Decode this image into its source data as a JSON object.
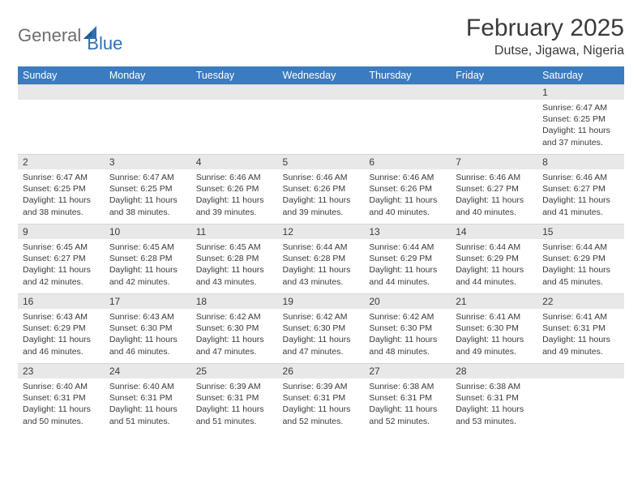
{
  "brand": {
    "name_main": "General",
    "name_sub": "Blue"
  },
  "title": {
    "month": "February 2025",
    "location": "Dutse, Jigawa, Nigeria"
  },
  "colors": {
    "header_bg": "#3b7bbf",
    "header_text": "#ffffff",
    "daynum_bg": "#e8e8e8",
    "text": "#3a3a3a",
    "logo_gray": "#6e6e6e",
    "logo_blue": "#2f6fb3"
  },
  "weekdays": [
    "Sunday",
    "Monday",
    "Tuesday",
    "Wednesday",
    "Thursday",
    "Friday",
    "Saturday"
  ],
  "weeks": [
    [
      {
        "n": "",
        "sr": "",
        "ss": "",
        "dl": ""
      },
      {
        "n": "",
        "sr": "",
        "ss": "",
        "dl": ""
      },
      {
        "n": "",
        "sr": "",
        "ss": "",
        "dl": ""
      },
      {
        "n": "",
        "sr": "",
        "ss": "",
        "dl": ""
      },
      {
        "n": "",
        "sr": "",
        "ss": "",
        "dl": ""
      },
      {
        "n": "",
        "sr": "",
        "ss": "",
        "dl": ""
      },
      {
        "n": "1",
        "sr": "Sunrise: 6:47 AM",
        "ss": "Sunset: 6:25 PM",
        "dl": "Daylight: 11 hours and 37 minutes."
      }
    ],
    [
      {
        "n": "2",
        "sr": "Sunrise: 6:47 AM",
        "ss": "Sunset: 6:25 PM",
        "dl": "Daylight: 11 hours and 38 minutes."
      },
      {
        "n": "3",
        "sr": "Sunrise: 6:47 AM",
        "ss": "Sunset: 6:25 PM",
        "dl": "Daylight: 11 hours and 38 minutes."
      },
      {
        "n": "4",
        "sr": "Sunrise: 6:46 AM",
        "ss": "Sunset: 6:26 PM",
        "dl": "Daylight: 11 hours and 39 minutes."
      },
      {
        "n": "5",
        "sr": "Sunrise: 6:46 AM",
        "ss": "Sunset: 6:26 PM",
        "dl": "Daylight: 11 hours and 39 minutes."
      },
      {
        "n": "6",
        "sr": "Sunrise: 6:46 AM",
        "ss": "Sunset: 6:26 PM",
        "dl": "Daylight: 11 hours and 40 minutes."
      },
      {
        "n": "7",
        "sr": "Sunrise: 6:46 AM",
        "ss": "Sunset: 6:27 PM",
        "dl": "Daylight: 11 hours and 40 minutes."
      },
      {
        "n": "8",
        "sr": "Sunrise: 6:46 AM",
        "ss": "Sunset: 6:27 PM",
        "dl": "Daylight: 11 hours and 41 minutes."
      }
    ],
    [
      {
        "n": "9",
        "sr": "Sunrise: 6:45 AM",
        "ss": "Sunset: 6:27 PM",
        "dl": "Daylight: 11 hours and 42 minutes."
      },
      {
        "n": "10",
        "sr": "Sunrise: 6:45 AM",
        "ss": "Sunset: 6:28 PM",
        "dl": "Daylight: 11 hours and 42 minutes."
      },
      {
        "n": "11",
        "sr": "Sunrise: 6:45 AM",
        "ss": "Sunset: 6:28 PM",
        "dl": "Daylight: 11 hours and 43 minutes."
      },
      {
        "n": "12",
        "sr": "Sunrise: 6:44 AM",
        "ss": "Sunset: 6:28 PM",
        "dl": "Daylight: 11 hours and 43 minutes."
      },
      {
        "n": "13",
        "sr": "Sunrise: 6:44 AM",
        "ss": "Sunset: 6:29 PM",
        "dl": "Daylight: 11 hours and 44 minutes."
      },
      {
        "n": "14",
        "sr": "Sunrise: 6:44 AM",
        "ss": "Sunset: 6:29 PM",
        "dl": "Daylight: 11 hours and 44 minutes."
      },
      {
        "n": "15",
        "sr": "Sunrise: 6:44 AM",
        "ss": "Sunset: 6:29 PM",
        "dl": "Daylight: 11 hours and 45 minutes."
      }
    ],
    [
      {
        "n": "16",
        "sr": "Sunrise: 6:43 AM",
        "ss": "Sunset: 6:29 PM",
        "dl": "Daylight: 11 hours and 46 minutes."
      },
      {
        "n": "17",
        "sr": "Sunrise: 6:43 AM",
        "ss": "Sunset: 6:30 PM",
        "dl": "Daylight: 11 hours and 46 minutes."
      },
      {
        "n": "18",
        "sr": "Sunrise: 6:42 AM",
        "ss": "Sunset: 6:30 PM",
        "dl": "Daylight: 11 hours and 47 minutes."
      },
      {
        "n": "19",
        "sr": "Sunrise: 6:42 AM",
        "ss": "Sunset: 6:30 PM",
        "dl": "Daylight: 11 hours and 47 minutes."
      },
      {
        "n": "20",
        "sr": "Sunrise: 6:42 AM",
        "ss": "Sunset: 6:30 PM",
        "dl": "Daylight: 11 hours and 48 minutes."
      },
      {
        "n": "21",
        "sr": "Sunrise: 6:41 AM",
        "ss": "Sunset: 6:30 PM",
        "dl": "Daylight: 11 hours and 49 minutes."
      },
      {
        "n": "22",
        "sr": "Sunrise: 6:41 AM",
        "ss": "Sunset: 6:31 PM",
        "dl": "Daylight: 11 hours and 49 minutes."
      }
    ],
    [
      {
        "n": "23",
        "sr": "Sunrise: 6:40 AM",
        "ss": "Sunset: 6:31 PM",
        "dl": "Daylight: 11 hours and 50 minutes."
      },
      {
        "n": "24",
        "sr": "Sunrise: 6:40 AM",
        "ss": "Sunset: 6:31 PM",
        "dl": "Daylight: 11 hours and 51 minutes."
      },
      {
        "n": "25",
        "sr": "Sunrise: 6:39 AM",
        "ss": "Sunset: 6:31 PM",
        "dl": "Daylight: 11 hours and 51 minutes."
      },
      {
        "n": "26",
        "sr": "Sunrise: 6:39 AM",
        "ss": "Sunset: 6:31 PM",
        "dl": "Daylight: 11 hours and 52 minutes."
      },
      {
        "n": "27",
        "sr": "Sunrise: 6:38 AM",
        "ss": "Sunset: 6:31 PM",
        "dl": "Daylight: 11 hours and 52 minutes."
      },
      {
        "n": "28",
        "sr": "Sunrise: 6:38 AM",
        "ss": "Sunset: 6:31 PM",
        "dl": "Daylight: 11 hours and 53 minutes."
      },
      {
        "n": "",
        "sr": "",
        "ss": "",
        "dl": ""
      }
    ]
  ]
}
